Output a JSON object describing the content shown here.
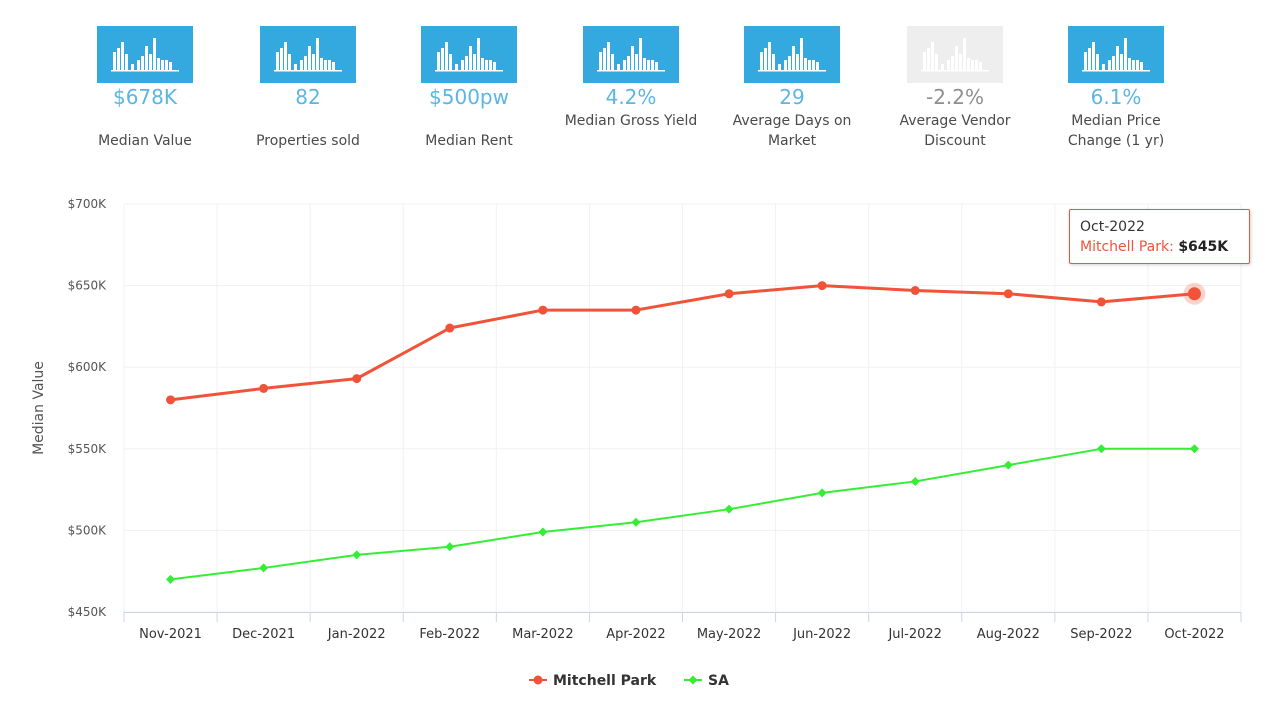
{
  "stats": [
    {
      "value": "$678K",
      "label": "Median Value",
      "icon": "bar-chart-icon",
      "dim": false
    },
    {
      "value": "82",
      "label": "Properties sold",
      "icon": "bar-chart-icon",
      "dim": false
    },
    {
      "value": "$500pw",
      "label": "Median Rent",
      "icon": "bar-chart-icon",
      "dim": false
    },
    {
      "value": "4.2%",
      "label": "Median Gross Yield",
      "icon": "bar-chart-icon",
      "dim": false
    },
    {
      "value": "29",
      "label": "Average Days on Market",
      "icon": "bar-chart-icon",
      "dim": false
    },
    {
      "value": "-2.2%",
      "label": "Average Vendor Discount",
      "icon": "bar-chart-icon",
      "dim": true
    },
    {
      "value": "6.1%",
      "label": "Median Price Change (1 yr)",
      "icon": "bar-chart-icon",
      "dim": false
    }
  ],
  "colors": {
    "accent": "#34a9e0",
    "stat_value": "#5bb6e2",
    "mitchell_park": "#f0533a",
    "sa": "#33ee33"
  },
  "tooltip": {
    "date": "Oct-2022",
    "series": "Mitchell Park",
    "value": "$645K"
  },
  "chart_data": {
    "type": "line",
    "ylabel": "Median Value",
    "xlabel": "",
    "ylim": [
      450000,
      700000
    ],
    "yticks": [
      450000,
      500000,
      550000,
      600000,
      650000,
      700000
    ],
    "ytick_labels": [
      "$450K",
      "$500K",
      "$550K",
      "$600K",
      "$650K",
      "$700K"
    ],
    "categories": [
      "Nov-2021",
      "Dec-2021",
      "Jan-2022",
      "Feb-2022",
      "Mar-2022",
      "Apr-2022",
      "May-2022",
      "Jun-2022",
      "Jul-2022",
      "Aug-2022",
      "Sep-2022",
      "Oct-2022"
    ],
    "series": [
      {
        "name": "Mitchell Park",
        "color": "#f0533a",
        "marker": "circle",
        "values": [
          580000,
          587000,
          593000,
          624000,
          635000,
          635000,
          645000,
          650000,
          647000,
          645000,
          640000,
          645000
        ]
      },
      {
        "name": "SA",
        "color": "#33ee33",
        "marker": "diamond",
        "values": [
          470000,
          477000,
          485000,
          490000,
          499000,
          505000,
          513000,
          523000,
          530000,
          540000,
          550000,
          550000
        ]
      }
    ],
    "grid": true,
    "legend": "bottom-center",
    "highlighted_point": {
      "series": "Mitchell Park",
      "category": "Oct-2022"
    }
  }
}
